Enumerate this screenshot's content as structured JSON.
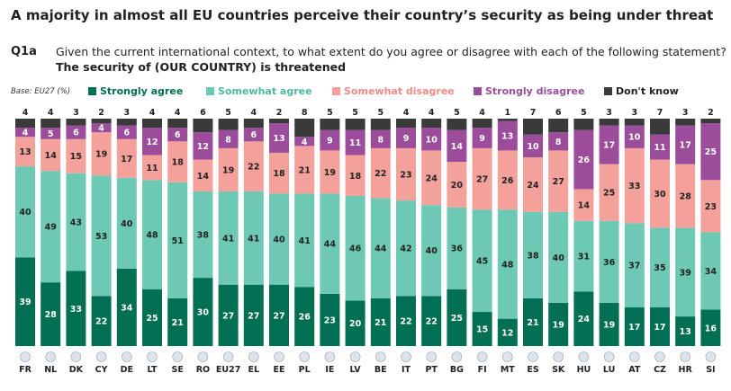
{
  "title": "A majority in almost all EU countries perceive their country’s security as being under threat",
  "question_id": "Q1a",
  "question": "Given the current international context, to what extent do you agree or disagree with each of the following statement?",
  "statement": "The security of (OUR COUNTRY) is threatened",
  "base": "Base: EU27 (%)",
  "chart_data": {
    "type": "bar",
    "stacked": true,
    "title": "A majority in almost all EU countries perceive their country’s security as being under threat",
    "ylim": [
      0,
      100
    ],
    "categories": [
      "FR",
      "NL",
      "DK",
      "CY",
      "DE",
      "LT",
      "SE",
      "RO",
      "EU27",
      "EL",
      "EE",
      "PL",
      "IE",
      "LV",
      "BE",
      "IT",
      "PT",
      "BG",
      "FI",
      "MT",
      "ES",
      "SK",
      "HU",
      "LU",
      "AT",
      "CZ",
      "HR",
      "SI"
    ],
    "series": [
      {
        "name": "Strongly agree",
        "color": "#006f52",
        "values": [
          39,
          28,
          33,
          22,
          34,
          25,
          21,
          30,
          27,
          27,
          27,
          26,
          23,
          20,
          21,
          22,
          22,
          25,
          15,
          12,
          21,
          19,
          24,
          19,
          17,
          17,
          13,
          16
        ]
      },
      {
        "name": "Somewhat agree",
        "color": "#6dc8b4",
        "values": [
          40,
          49,
          43,
          53,
          40,
          48,
          51,
          38,
          41,
          41,
          40,
          41,
          44,
          46,
          44,
          42,
          40,
          36,
          45,
          48,
          38,
          40,
          31,
          36,
          37,
          35,
          39,
          34
        ]
      },
      {
        "name": "Somewhat disagree",
        "color": "#f4a19c",
        "values": [
          13,
          14,
          15,
          19,
          17,
          11,
          18,
          14,
          19,
          22,
          18,
          21,
          19,
          18,
          22,
          23,
          24,
          20,
          27,
          26,
          24,
          27,
          14,
          25,
          33,
          30,
          28,
          23
        ]
      },
      {
        "name": "Strongly disagree",
        "color": "#9b4d9b",
        "values": [
          4,
          5,
          6,
          4,
          6,
          12,
          6,
          12,
          8,
          6,
          13,
          4,
          9,
          11,
          8,
          9,
          10,
          14,
          9,
          13,
          10,
          8,
          26,
          17,
          10,
          11,
          17,
          25
        ]
      },
      {
        "name": "Don't know",
        "color": "#3a3a3a",
        "values": [
          4,
          4,
          3,
          2,
          3,
          4,
          4,
          6,
          5,
          4,
          2,
          8,
          5,
          5,
          5,
          4,
          4,
          5,
          4,
          1,
          7,
          6,
          5,
          3,
          3,
          7,
          3,
          2
        ]
      }
    ],
    "label_colors": [
      "#ffffff",
      "#222222",
      "#222222",
      "#ffffff",
      "#222222"
    ]
  }
}
